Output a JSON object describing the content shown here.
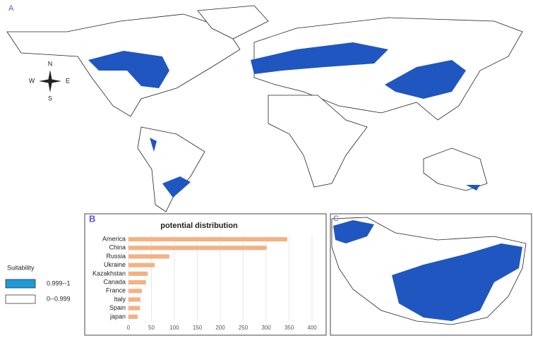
{
  "panel_a": {
    "label": "A",
    "compass": {
      "north": "N",
      "east": "E",
      "south": "S",
      "west": "W"
    }
  },
  "legend": {
    "title": "Suitability",
    "items": [
      {
        "label": "0.999--1",
        "color": "#1e9bd7"
      },
      {
        "label": "0--0.999",
        "color": "#ffffff"
      }
    ]
  },
  "panel_b": {
    "label": "B"
  },
  "panel_c": {
    "label": "C"
  },
  "chart_data": {
    "type": "hbar",
    "title": "potential distribution",
    "categories": [
      "America",
      "China",
      "Russia",
      "Ukraine",
      "Kazakhstan",
      "Canada",
      "France",
      "Italy",
      "Spain",
      "japan"
    ],
    "values": [
      346,
      301,
      89,
      57,
      42,
      38,
      29,
      26,
      25,
      20
    ],
    "color": "#f4b183",
    "xlim": [
      0,
      400
    ],
    "xticks": [
      0,
      50,
      100,
      150,
      200,
      250,
      300,
      350,
      400
    ],
    "grid": true
  }
}
